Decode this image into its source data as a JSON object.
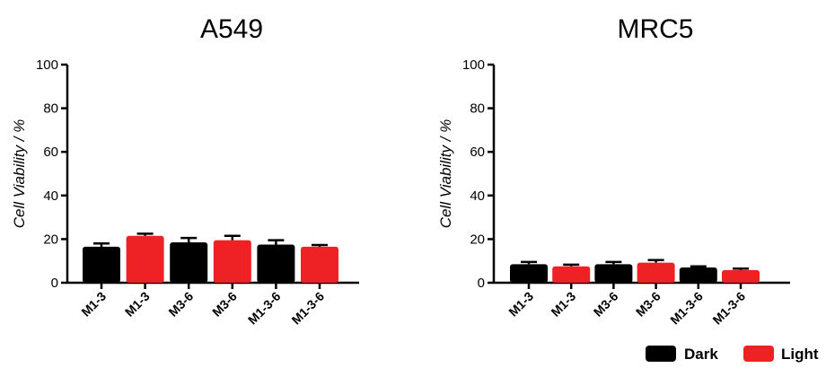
{
  "chart_data": [
    {
      "type": "bar",
      "title": "A549",
      "xlabel": "",
      "ylabel": "Cell Viability / %",
      "ylim": [
        0,
        100
      ],
      "yticks": [
        "0",
        "20",
        "40",
        "60",
        "80",
        "100"
      ],
      "categories": [
        "M1-3",
        "M1-3",
        "M3-6",
        "M3-6",
        "M1-3-6",
        "M1-3-6"
      ],
      "values": [
        16.5,
        21.5,
        18.5,
        19.5,
        17.5,
        16.5
      ],
      "errors": [
        1.5,
        1.0,
        2.0,
        2.0,
        2.0,
        0.8
      ],
      "conditions": [
        "Dark",
        "Light",
        "Dark",
        "Light",
        "Dark",
        "Light"
      ],
      "grid": false
    },
    {
      "type": "bar",
      "title": "MRC5",
      "xlabel": "",
      "ylabel": "Cell Viability / %",
      "ylim": [
        0,
        100
      ],
      "yticks": [
        "0",
        "20",
        "40",
        "60",
        "80",
        "100"
      ],
      "categories": [
        "M1-3",
        "M1-3",
        "M3-6",
        "M3-6",
        "M1-3-6",
        "M1-3-6"
      ],
      "values": [
        8.5,
        7.5,
        8.5,
        9.2,
        7.0,
        5.8
      ],
      "errors": [
        1.0,
        0.8,
        1.0,
        1.2,
        0.5,
        0.7
      ],
      "conditions": [
        "Dark",
        "Light",
        "Dark",
        "Light",
        "Dark",
        "Light"
      ],
      "grid": false
    }
  ],
  "legend": {
    "placement": "bottom-right",
    "items": [
      {
        "label": "Dark",
        "color": "#000000"
      },
      {
        "label": "Light",
        "color": "#ee2224"
      }
    ]
  }
}
